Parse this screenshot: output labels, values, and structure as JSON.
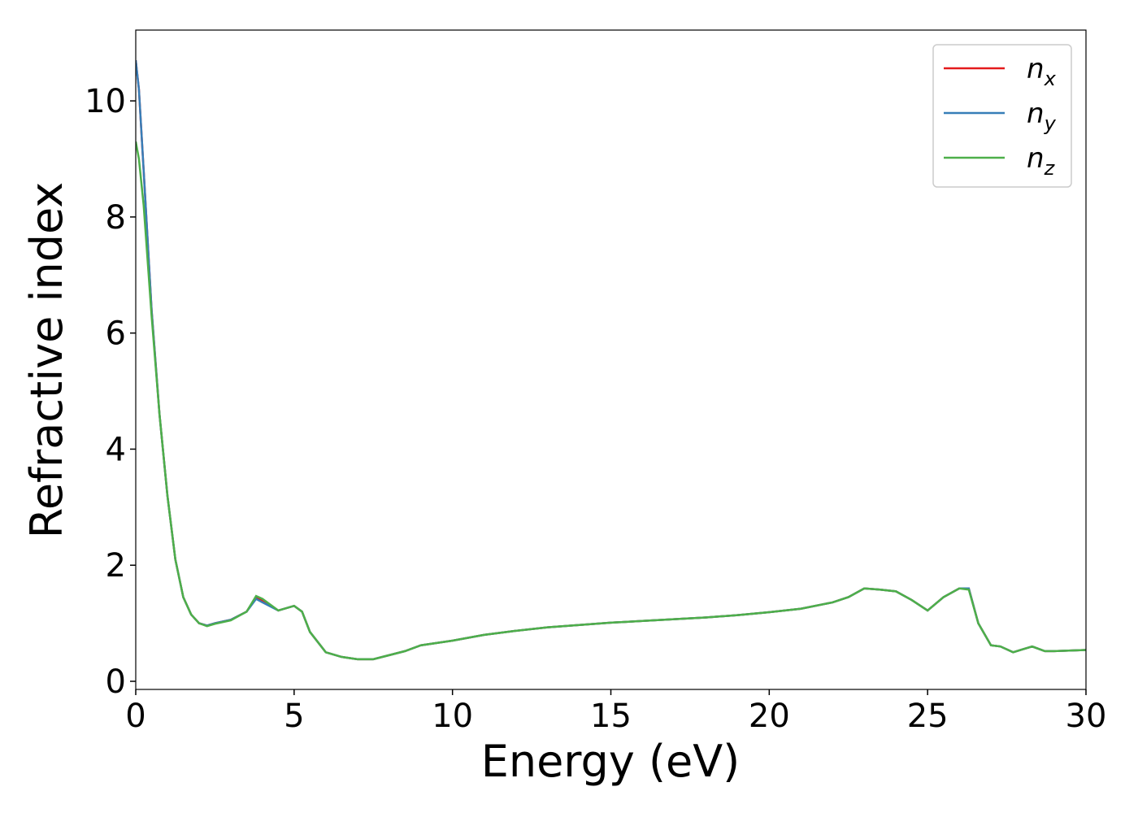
{
  "chart_data": {
    "type": "line",
    "xlabel": "Energy (eV)",
    "ylabel": "Refractive index",
    "x": [
      0,
      0.1,
      0.25,
      0.5,
      0.75,
      1,
      1.25,
      1.5,
      1.75,
      2,
      2.25,
      2.5,
      3,
      3.5,
      3.8,
      4,
      4.5,
      5,
      5.25,
      5.5,
      6,
      6.5,
      7,
      7.5,
      8,
      8.5,
      9,
      10,
      11,
      12,
      13,
      14,
      15,
      16,
      17,
      18,
      19,
      20,
      21,
      22,
      22.5,
      23,
      23.5,
      24,
      24.5,
      25,
      25.5,
      26,
      26.3,
      26.6,
      27,
      27.3,
      27.7,
      28,
      28.3,
      28.7,
      29,
      30
    ],
    "series": [
      {
        "name": "nx",
        "color": "#e41a1c",
        "values": [
          10.7,
          10.2,
          8.8,
          6.4,
          4.6,
          3.2,
          2.1,
          1.45,
          1.15,
          1.0,
          0.96,
          1.0,
          1.06,
          1.2,
          1.45,
          1.38,
          1.22,
          1.3,
          1.2,
          0.85,
          0.5,
          0.42,
          0.38,
          0.38,
          0.45,
          0.52,
          0.62,
          0.7,
          0.8,
          0.87,
          0.93,
          0.97,
          1.01,
          1.04,
          1.07,
          1.1,
          1.14,
          1.19,
          1.25,
          1.36,
          1.45,
          1.6,
          1.58,
          1.55,
          1.4,
          1.22,
          1.45,
          1.6,
          1.6,
          1.0,
          0.62,
          0.6,
          0.5,
          0.55,
          0.6,
          0.52,
          0.52,
          0.54
        ]
      },
      {
        "name": "ny",
        "color": "#377eb8",
        "values": [
          10.7,
          10.2,
          8.8,
          6.4,
          4.6,
          3.2,
          2.1,
          1.45,
          1.15,
          1.0,
          0.96,
          1.0,
          1.06,
          1.2,
          1.42,
          1.36,
          1.22,
          1.3,
          1.2,
          0.85,
          0.5,
          0.42,
          0.38,
          0.38,
          0.45,
          0.52,
          0.62,
          0.7,
          0.8,
          0.87,
          0.93,
          0.97,
          1.01,
          1.04,
          1.07,
          1.1,
          1.14,
          1.19,
          1.25,
          1.36,
          1.45,
          1.6,
          1.58,
          1.55,
          1.4,
          1.22,
          1.45,
          1.6,
          1.6,
          1.0,
          0.62,
          0.6,
          0.5,
          0.55,
          0.6,
          0.52,
          0.52,
          0.54
        ]
      },
      {
        "name": "nz",
        "color": "#4daf4a",
        "values": [
          9.3,
          9.0,
          8.2,
          6.3,
          4.6,
          3.2,
          2.1,
          1.45,
          1.15,
          1.0,
          0.95,
          0.99,
          1.05,
          1.2,
          1.47,
          1.42,
          1.22,
          1.3,
          1.2,
          0.85,
          0.5,
          0.42,
          0.38,
          0.38,
          0.45,
          0.52,
          0.62,
          0.7,
          0.8,
          0.87,
          0.93,
          0.97,
          1.01,
          1.04,
          1.07,
          1.1,
          1.14,
          1.19,
          1.25,
          1.36,
          1.45,
          1.6,
          1.58,
          1.55,
          1.4,
          1.22,
          1.45,
          1.6,
          1.58,
          1.0,
          0.62,
          0.6,
          0.5,
          0.55,
          0.6,
          0.52,
          0.52,
          0.54
        ]
      }
    ],
    "xlim": [
      0,
      30
    ],
    "xticks": [
      0,
      5,
      10,
      15,
      20,
      25,
      30
    ],
    "ylim": [
      -0.14,
      11.22
    ],
    "yticks": [
      0,
      2,
      4,
      6,
      8,
      10
    ],
    "grid": false,
    "legend": "upper right"
  }
}
